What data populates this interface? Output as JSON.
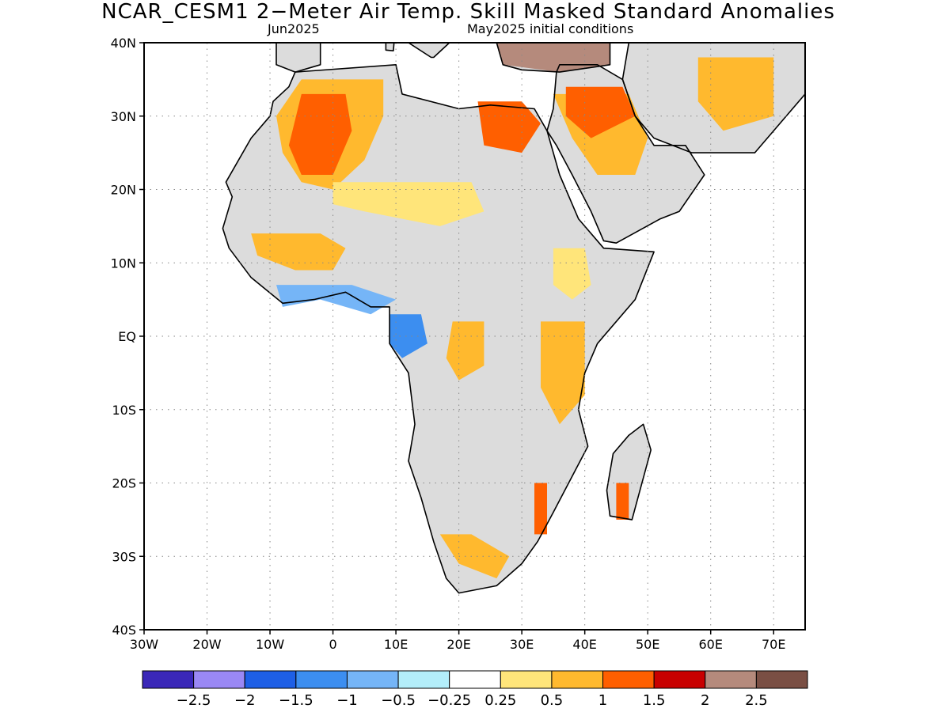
{
  "title": "NCAR_CESM1 2−Meter Air Temp. Skill Masked Standard Anomalies",
  "subtitle_left": "Jun2025",
  "subtitle_right": "May2025 initial conditions",
  "map_extent": {
    "lon": [
      -30,
      75
    ],
    "lat": [
      -40,
      40
    ]
  },
  "lat_ticks": [
    {
      "value": 40,
      "label": "40N"
    },
    {
      "value": 30,
      "label": "30N"
    },
    {
      "value": 20,
      "label": "20N"
    },
    {
      "value": 10,
      "label": "10N"
    },
    {
      "value": 0,
      "label": "EQ"
    },
    {
      "value": -10,
      "label": "10S"
    },
    {
      "value": -20,
      "label": "20S"
    },
    {
      "value": -30,
      "label": "30S"
    },
    {
      "value": -40,
      "label": "40S"
    }
  ],
  "lon_ticks": [
    {
      "value": -30,
      "label": "30W"
    },
    {
      "value": -20,
      "label": "20W"
    },
    {
      "value": -10,
      "label": "10W"
    },
    {
      "value": 0,
      "label": "0"
    },
    {
      "value": 10,
      "label": "10E"
    },
    {
      "value": 20,
      "label": "20E"
    },
    {
      "value": 30,
      "label": "30E"
    },
    {
      "value": 40,
      "label": "40E"
    },
    {
      "value": 50,
      "label": "50E"
    },
    {
      "value": 60,
      "label": "60E"
    },
    {
      "value": 70,
      "label": "70E"
    }
  ],
  "colorbar": {
    "colors": [
      "#3a27b8",
      "#9a88f5",
      "#1e5fe6",
      "#3c8ef0",
      "#75b5f7",
      "#b3eefa",
      "#ffffff",
      "#ffe57a",
      "#ffb92e",
      "#ff5f00",
      "#c80000",
      "#b58a7c",
      "#7a4f44"
    ],
    "labels": [
      "−2.5",
      "−2",
      "−1.5",
      "−1",
      "−0.5",
      "−0.25",
      "0.25",
      "0.5",
      "1",
      "1.5",
      "2",
      "2.5"
    ]
  },
  "mask_color": "#dcdcdc",
  "anomaly_regions": [
    {
      "id": "sahara-west",
      "level": 2,
      "pts": [
        [
          -5,
          35
        ],
        [
          8,
          35
        ],
        [
          8,
          30
        ],
        [
          5,
          24
        ],
        [
          0,
          20
        ],
        [
          -5,
          21
        ],
        [
          -8,
          25
        ],
        [
          -9,
          30
        ]
      ]
    },
    {
      "id": "sahara-west-core",
      "level": 3,
      "pts": [
        [
          -5,
          33
        ],
        [
          2,
          33
        ],
        [
          3,
          28
        ],
        [
          0,
          22
        ],
        [
          -5,
          22
        ],
        [
          -7,
          26
        ]
      ]
    },
    {
      "id": "libya-egypt",
      "level": 3,
      "pts": [
        [
          23,
          32
        ],
        [
          30,
          32
        ],
        [
          33,
          29
        ],
        [
          30,
          25
        ],
        [
          24,
          26
        ]
      ]
    },
    {
      "id": "arabia",
      "level": 2,
      "pts": [
        [
          35,
          33
        ],
        [
          47,
          33
        ],
        [
          50,
          27
        ],
        [
          48,
          22
        ],
        [
          42,
          22
        ],
        [
          38,
          27
        ]
      ]
    },
    {
      "id": "iraq-syria",
      "level": 3,
      "pts": [
        [
          37,
          34
        ],
        [
          46,
          34
        ],
        [
          48,
          30
        ],
        [
          41,
          27
        ],
        [
          37,
          30
        ]
      ]
    },
    {
      "id": "turkey",
      "level": 5,
      "pts": [
        [
          26,
          40
        ],
        [
          44,
          40
        ],
        [
          44,
          37
        ],
        [
          36,
          36
        ],
        [
          27,
          37
        ]
      ]
    },
    {
      "id": "sahel",
      "level": 1,
      "pts": [
        [
          0,
          21
        ],
        [
          22,
          21
        ],
        [
          24,
          17
        ],
        [
          17,
          15
        ],
        [
          5,
          17
        ],
        [
          0,
          18
        ]
      ]
    },
    {
      "id": "west-africa",
      "level": 2,
      "pts": [
        [
          -13,
          14
        ],
        [
          -2,
          14
        ],
        [
          2,
          12
        ],
        [
          0,
          9
        ],
        [
          -6,
          9
        ],
        [
          -12,
          11
        ]
      ]
    },
    {
      "id": "gulf-guinea-cold",
      "level": -2,
      "pts": [
        [
          -9,
          7
        ],
        [
          3,
          7
        ],
        [
          10,
          5
        ],
        [
          6,
          3
        ],
        [
          -2,
          5
        ],
        [
          -8,
          4
        ]
      ]
    },
    {
      "id": "congo-cold",
      "level": -3,
      "pts": [
        [
          9,
          3
        ],
        [
          14,
          3
        ],
        [
          15,
          -1
        ],
        [
          11,
          -3
        ],
        [
          9,
          -1
        ]
      ]
    },
    {
      "id": "ethiopia",
      "level": 1,
      "pts": [
        [
          35,
          12
        ],
        [
          40,
          12
        ],
        [
          41,
          7
        ],
        [
          38,
          5
        ],
        [
          35,
          7
        ]
      ]
    },
    {
      "id": "kenya-tanzania",
      "level": 2,
      "pts": [
        [
          33,
          2
        ],
        [
          40,
          2
        ],
        [
          40,
          -8
        ],
        [
          36,
          -12
        ],
        [
          33,
          -7
        ]
      ]
    },
    {
      "id": "congo-east",
      "level": 2,
      "pts": [
        [
          19,
          2
        ],
        [
          24,
          2
        ],
        [
          24,
          -4
        ],
        [
          20,
          -6
        ],
        [
          18,
          -3
        ]
      ]
    },
    {
      "id": "south-africa",
      "level": 2,
      "pts": [
        [
          17,
          -27
        ],
        [
          22,
          -27
        ],
        [
          28,
          -30
        ],
        [
          26,
          -33
        ],
        [
          20,
          -31
        ]
      ]
    },
    {
      "id": "mozambique",
      "level": 3,
      "pts": [
        [
          32,
          -20
        ],
        [
          34,
          -20
        ],
        [
          34,
          -27
        ],
        [
          32,
          -27
        ]
      ]
    },
    {
      "id": "madagascar",
      "level": 3,
      "pts": [
        [
          45,
          -20
        ],
        [
          47,
          -20
        ],
        [
          47,
          -25
        ],
        [
          45,
          -25
        ]
      ]
    },
    {
      "id": "iran",
      "level": 2,
      "pts": [
        [
          58,
          38
        ],
        [
          70,
          38
        ],
        [
          70,
          30
        ],
        [
          62,
          28
        ],
        [
          58,
          32
        ]
      ]
    }
  ]
}
